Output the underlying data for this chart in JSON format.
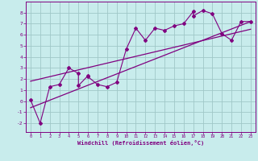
{
  "xlabel": "Windchill (Refroidissement éolien,°C)",
  "bg_color": "#c8ecec",
  "grid_color": "#a0c8c8",
  "line_color": "#800080",
  "marker_color": "#800080",
  "xlim": [
    -0.5,
    23.5
  ],
  "ylim": [
    -2.8,
    9.0
  ],
  "xticks": [
    0,
    1,
    2,
    3,
    4,
    5,
    6,
    7,
    8,
    9,
    10,
    11,
    12,
    13,
    14,
    15,
    16,
    17,
    18,
    19,
    20,
    21,
    22,
    23
  ],
  "yticks": [
    -2,
    -1,
    0,
    1,
    2,
    3,
    4,
    5,
    6,
    7,
    8
  ],
  "scatter_x": [
    0,
    1,
    2,
    3,
    4,
    5,
    5,
    6,
    6,
    7,
    8,
    9,
    10,
    11,
    12,
    13,
    14,
    15,
    16,
    17,
    17,
    18,
    19,
    20,
    21,
    22,
    23
  ],
  "scatter_y": [
    0.1,
    -2.0,
    1.3,
    1.5,
    3.0,
    2.5,
    1.4,
    2.3,
    2.2,
    1.5,
    1.3,
    1.7,
    4.7,
    6.6,
    5.5,
    6.6,
    6.4,
    6.8,
    7.0,
    8.1,
    7.7,
    8.2,
    7.9,
    6.1,
    5.5,
    7.2,
    7.2
  ],
  "line1_x": [
    0,
    23
  ],
  "line1_y": [
    -0.6,
    7.2
  ],
  "line2_x": [
    0,
    23
  ],
  "line2_y": [
    1.8,
    6.5
  ]
}
